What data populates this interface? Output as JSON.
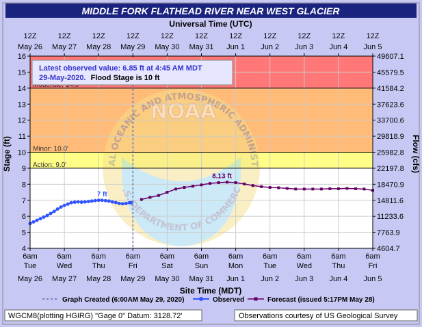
{
  "header": {
    "title": "MIDDLE FORK FLATHEAD RIVER NEAR WEST GLACIER"
  },
  "colors": {
    "header_bg": "#1a237e",
    "frame_bg": "#c8c8f5",
    "major": "#ff7777",
    "moderate": "#ffbb77",
    "minor": "#ffff88",
    "observed": "#3355ff",
    "forecast": "#660066",
    "annotation_text": "#3333cc"
  },
  "axes": {
    "top_title": "Universal Time (UTC)",
    "bottom_title": "Site Time (MDT)",
    "left_title": "Stage (ft)",
    "right_title": "Flow (cfs)",
    "top_ticks": [
      {
        "l1": "12Z",
        "l2": "May 26"
      },
      {
        "l1": "12Z",
        "l2": "May 27"
      },
      {
        "l1": "12Z",
        "l2": "May 28"
      },
      {
        "l1": "12Z",
        "l2": "May 29"
      },
      {
        "l1": "12Z",
        "l2": "May 30"
      },
      {
        "l1": "12Z",
        "l2": "May 31"
      },
      {
        "l1": "12Z",
        "l2": "Jun 1"
      },
      {
        "l1": "12Z",
        "l2": "Jun 2"
      },
      {
        "l1": "12Z",
        "l2": "Jun 3"
      },
      {
        "l1": "12Z",
        "l2": "Jun 4"
      },
      {
        "l1": "12Z",
        "l2": "Jun 5"
      }
    ],
    "bottom_ticks": [
      {
        "l1": "6am",
        "l2": "Tue",
        "l3": "May 26"
      },
      {
        "l1": "6am",
        "l2": "Wed",
        "l3": "May 27"
      },
      {
        "l1": "6am",
        "l2": "Thu",
        "l3": "May 28"
      },
      {
        "l1": "6am",
        "l2": "Fri",
        "l3": "May 29"
      },
      {
        "l1": "6am",
        "l2": "Sat",
        "l3": "May 30"
      },
      {
        "l1": "6am",
        "l2": "Sun",
        "l3": "May 31"
      },
      {
        "l1": "6am",
        "l2": "Mon",
        "l3": "Jun 1"
      },
      {
        "l1": "6am",
        "l2": "Tue",
        "l3": "Jun 2"
      },
      {
        "l1": "6am",
        "l2": "Wed",
        "l3": "Jun 3"
      },
      {
        "l1": "6am",
        "l2": "Thu",
        "l3": "Jun 4"
      },
      {
        "l1": "6am",
        "l2": "Fri",
        "l3": "Jun 5"
      }
    ],
    "flow_labels": [
      "4604.7",
      "7763.9",
      "11233.6",
      "14811.6",
      "18470.9",
      "22197.8",
      "25982.8",
      "29818.9",
      "33700.6",
      "37623.6",
      "41584.2",
      "45579.5",
      "49607.1"
    ]
  },
  "annotation": {
    "line1": "Latest observed value: 6.85 ft at 4:45 AM MDT",
    "line2_date": "29-May-2020.",
    "line2_flood": "Flood Stage is 10 ft"
  },
  "watermark": {
    "noaa_text": "NOAA",
    "arc_top": "NATIONAL OCEANIC AND ATMOSPHERIC ADMINISTRATION",
    "arc_bottom": "U.S. DEPARTMENT OF COMMERCE"
  },
  "legend": {
    "created": "Graph Created (6:00AM May 29, 2020)",
    "observed": "Observed",
    "forecast": "Forecast (issued 5:17PM May 28)"
  },
  "footer": {
    "left": "WGCM8(plotting HGIRG) \"Gage 0\" Datum: 3128.72'",
    "right": "Observations courtesy of US Geological Survey"
  },
  "chart_data": {
    "type": "line",
    "title": "MIDDLE FORK FLATHEAD RIVER NEAR WEST GLACIER",
    "xlabel": "Site Time (MDT)",
    "ylabel": "Stage (ft)",
    "y2label": "Flow (cfs)",
    "xlim": [
      "May 26 6am",
      "Jun 5 6am"
    ],
    "ylim": [
      4,
      16
    ],
    "grid": true,
    "legend_position": "bottom",
    "flood_categories": [
      {
        "name": "Action",
        "label": "Action: 9.0'",
        "value": 9.0
      },
      {
        "name": "Minor",
        "label": "Minor: 10.0'",
        "value": 10.0
      },
      {
        "name": "Moderate",
        "label": "Moderate: 14.0'",
        "value": 14.0
      }
    ],
    "graph_created_day": 3.0,
    "series": [
      {
        "name": "Observed",
        "peak_label": "7 ft",
        "peak_day": 2.1,
        "peak_value": 7.0,
        "points": [
          [
            0.0,
            5.55
          ],
          [
            0.1,
            5.65
          ],
          [
            0.2,
            5.75
          ],
          [
            0.3,
            5.85
          ],
          [
            0.4,
            5.95
          ],
          [
            0.5,
            6.05
          ],
          [
            0.6,
            6.18
          ],
          [
            0.7,
            6.3
          ],
          [
            0.8,
            6.45
          ],
          [
            0.9,
            6.58
          ],
          [
            1.0,
            6.68
          ],
          [
            1.1,
            6.76
          ],
          [
            1.2,
            6.85
          ],
          [
            1.3,
            6.88
          ],
          [
            1.4,
            6.9
          ],
          [
            1.5,
            6.88
          ],
          [
            1.6,
            6.9
          ],
          [
            1.7,
            6.92
          ],
          [
            1.8,
            6.95
          ],
          [
            1.9,
            6.98
          ],
          [
            2.0,
            7.0
          ],
          [
            2.1,
            7.0
          ],
          [
            2.2,
            6.98
          ],
          [
            2.3,
            6.95
          ],
          [
            2.4,
            6.9
          ],
          [
            2.5,
            6.86
          ],
          [
            2.6,
            6.8
          ],
          [
            2.7,
            6.78
          ],
          [
            2.8,
            6.8
          ],
          [
            2.9,
            6.85
          ],
          [
            2.95,
            6.85
          ]
        ]
      },
      {
        "name": "Forecast",
        "peak_label": "8.13 ft",
        "peak_day": 5.6,
        "peak_value": 8.13,
        "points": [
          [
            3.25,
            7.05
          ],
          [
            3.5,
            7.18
          ],
          [
            3.75,
            7.3
          ],
          [
            4.0,
            7.5
          ],
          [
            4.25,
            7.7
          ],
          [
            4.5,
            7.8
          ],
          [
            4.75,
            7.88
          ],
          [
            5.0,
            7.96
          ],
          [
            5.25,
            8.05
          ],
          [
            5.5,
            8.1
          ],
          [
            5.75,
            8.13
          ],
          [
            6.0,
            8.1
          ],
          [
            6.25,
            8.02
          ],
          [
            6.5,
            7.92
          ],
          [
            6.75,
            7.85
          ],
          [
            7.0,
            7.8
          ],
          [
            7.25,
            7.78
          ],
          [
            7.5,
            7.74
          ],
          [
            7.75,
            7.7
          ],
          [
            8.0,
            7.7
          ],
          [
            8.25,
            7.7
          ],
          [
            8.5,
            7.7
          ],
          [
            8.75,
            7.72
          ],
          [
            9.0,
            7.72
          ],
          [
            9.25,
            7.74
          ],
          [
            9.5,
            7.72
          ],
          [
            9.75,
            7.7
          ],
          [
            10.0,
            7.62
          ]
        ]
      }
    ]
  }
}
